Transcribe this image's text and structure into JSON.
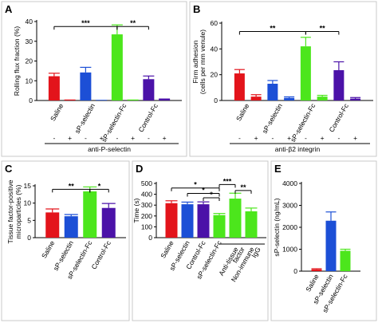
{
  "colors": {
    "red": "#e3141b",
    "blue": "#1c4fd6",
    "green": "#4ce61c",
    "purple": "#4b12a8",
    "panel_bg": "#c9c9c9"
  },
  "chart_data": [
    {
      "panel": "A",
      "type": "bar",
      "ylabel": "Rolling flux fraction (%)",
      "ylim": [
        0,
        40
      ],
      "yticks": [
        0,
        10,
        20,
        30,
        40
      ],
      "categories": [
        "Saline",
        "sP-selectin",
        "sP-selectin-Fc",
        "Control-Fc"
      ],
      "treatment_label": "anti-P-selectin",
      "treatment_signs": [
        "-",
        "+",
        "-",
        "+",
        "-",
        "+",
        "-",
        "+"
      ],
      "bars": [
        {
          "value": 12.3,
          "err": 1.5,
          "color": "red"
        },
        {
          "value": 0.5,
          "err": 0,
          "color": "red"
        },
        {
          "value": 14.2,
          "err": 2.6,
          "color": "blue"
        },
        {
          "value": 0,
          "err": 0,
          "color": "blue"
        },
        {
          "value": 33.5,
          "err": 4.8,
          "color": "green"
        },
        {
          "value": 0.5,
          "err": 0,
          "color": "green"
        },
        {
          "value": 10.8,
          "err": 1.6,
          "color": "purple"
        },
        {
          "value": 1,
          "err": 0,
          "color": "purple"
        }
      ],
      "significance": [
        {
          "from": 0,
          "to": 4,
          "y": 37.5,
          "label": "***"
        },
        {
          "from": 4,
          "to": 6,
          "y": 37.5,
          "label": "**"
        }
      ]
    },
    {
      "panel": "B",
      "type": "bar",
      "ylabel": "Firm adhesion (cells per mm venule)",
      "ylim": [
        0,
        60
      ],
      "yticks": [
        0,
        20,
        40,
        60
      ],
      "categories": [
        "Saline",
        "sP-selectin",
        "sP-selectin-Fc",
        "Control-Fc"
      ],
      "treatment_label": "anti-β2 integrin",
      "treatment_signs": [
        "-",
        "+",
        "-",
        "+",
        "-",
        "+",
        "-",
        "+"
      ],
      "bars": [
        {
          "value": 21,
          "err": 3,
          "color": "red"
        },
        {
          "value": 3,
          "err": 1.5,
          "color": "red"
        },
        {
          "value": 13,
          "err": 2.5,
          "color": "blue"
        },
        {
          "value": 2,
          "err": 0.8,
          "color": "blue"
        },
        {
          "value": 42,
          "err": 7,
          "color": "green"
        },
        {
          "value": 3,
          "err": 1,
          "color": "green"
        },
        {
          "value": 23.5,
          "err": 6.5,
          "color": "purple"
        },
        {
          "value": 1.5,
          "err": 0.8,
          "color": "purple"
        }
      ],
      "significance": [
        {
          "from": 0,
          "to": 4,
          "y": 53.5,
          "label": "**"
        },
        {
          "from": 4,
          "to": 6,
          "y": 53.5,
          "label": "**"
        }
      ]
    },
    {
      "panel": "C",
      "type": "bar",
      "ylabel": "Tissue factor-positive microparticles (%)",
      "ylim": [
        0,
        15
      ],
      "yticks": [
        0,
        5,
        10,
        15
      ],
      "categories": [
        "Saline",
        "sP-selectin",
        "sP-selectin-Fc",
        "Control-Fc"
      ],
      "bars": [
        {
          "value": 7.3,
          "err": 1.0,
          "color": "red"
        },
        {
          "value": 6.2,
          "err": 0.5,
          "color": "blue"
        },
        {
          "value": 13.4,
          "err": 1.3,
          "color": "green"
        },
        {
          "value": 8.6,
          "err": 1.3,
          "color": "purple"
        }
      ],
      "significance": [
        {
          "from": 0,
          "to": 2,
          "y": 14.0,
          "label": "**"
        },
        {
          "from": 2,
          "to": 3,
          "y": 14.0,
          "label": "*"
        }
      ]
    },
    {
      "panel": "D",
      "type": "bar",
      "ylabel": "Time (s)",
      "ylim": [
        0,
        500
      ],
      "yticks": [
        0,
        100,
        200,
        300,
        400,
        500
      ],
      "categories": [
        "Saline",
        "sP-selectin",
        "Control-Fc",
        "Anti-tissue factor",
        "Non-immune IgG"
      ],
      "category_lines": [
        [
          "Saline"
        ],
        [
          "sP-selectin"
        ],
        [
          "Control-Fc"
        ],
        [
          "Anti-tissue",
          "factor"
        ],
        [
          "Non-immune",
          "IgG"
        ]
      ],
      "group_label": "sP-selectin-Fc",
      "bars": [
        {
          "value": 318,
          "err": 22,
          "color": "red"
        },
        {
          "value": 308,
          "err": 20,
          "color": "blue"
        },
        {
          "value": 308,
          "err": 22,
          "color": "purple"
        },
        {
          "value": 208,
          "err": 15,
          "color": "green"
        },
        {
          "value": 360,
          "err": 50,
          "color": "green"
        },
        {
          "value": 243,
          "err": 30,
          "color": "green"
        }
      ],
      "significance": [
        {
          "from": 0,
          "to": 3,
          "y": 458,
          "label": "*"
        },
        {
          "from": 1,
          "to": 3,
          "y": 408,
          "label": "*"
        },
        {
          "from": 2,
          "to": 3,
          "y": 368,
          "label": "*"
        },
        {
          "from": 3,
          "to": 4,
          "y": 490,
          "label": "***"
        },
        {
          "from": 4,
          "to": 5,
          "y": 435,
          "label": "**"
        }
      ]
    },
    {
      "panel": "E",
      "type": "bar",
      "ylabel": "sP-selectin (ng/mL)",
      "ylim": [
        0,
        4000
      ],
      "yticks": [
        0,
        1000,
        2000,
        3000,
        4000
      ],
      "categories": [
        "Saline",
        "sP-selectin",
        "sP-selectin-Fc"
      ],
      "bars": [
        {
          "value": 80,
          "err": 30,
          "color": "red"
        },
        {
          "value": 2300,
          "err": 400,
          "color": "blue"
        },
        {
          "value": 930,
          "err": 70,
          "color": "green"
        }
      ],
      "significance": []
    }
  ]
}
